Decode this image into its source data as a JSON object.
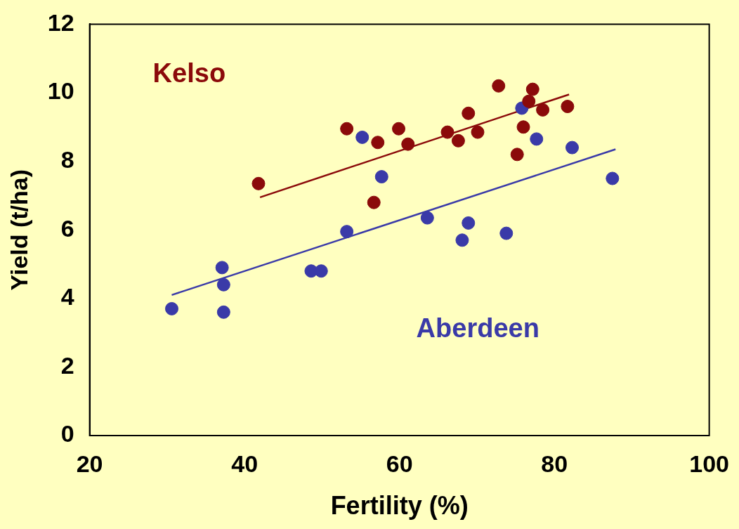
{
  "chart_data": {
    "type": "scatter",
    "xlabel": "Fertility (%)",
    "ylabel": "Yield (t/ha)",
    "xlim": [
      20,
      100
    ],
    "xticks": [
      20,
      40,
      60,
      80,
      100
    ],
    "ylim": [
      0,
      12
    ],
    "yticks": [
      0,
      2,
      4,
      6,
      8,
      10,
      12
    ],
    "grid": false,
    "legend": false,
    "marker": "circle",
    "series": [
      {
        "name": "Kelso",
        "color": "#8b0a0a",
        "x": [
          41.8,
          53.2,
          57.2,
          59.9,
          61.1,
          56.7,
          66.2,
          67.6,
          68.9,
          70.1,
          72.8,
          75.2,
          76.0,
          76.7,
          77.2,
          78.5,
          81.7
        ],
        "values": [
          7.35,
          8.95,
          8.55,
          8.95,
          8.5,
          6.8,
          8.85,
          8.6,
          9.4,
          8.85,
          10.2,
          8.2,
          9.0,
          9.75,
          10.1,
          9.5,
          9.6
        ]
      },
      {
        "name": "Aberdeen",
        "color": "#3a3aa8",
        "x": [
          30.6,
          37.1,
          37.3,
          37.3,
          48.6,
          49.9,
          53.2,
          55.2,
          57.7,
          63.6,
          68.1,
          68.9,
          73.8,
          75.8,
          77.7,
          82.3,
          87.5
        ],
        "values": [
          3.7,
          4.9,
          4.4,
          3.6,
          4.8,
          4.8,
          5.95,
          8.7,
          7.55,
          6.35,
          5.7,
          6.2,
          5.9,
          9.55,
          8.65,
          8.4,
          7.5
        ]
      },
      {
        "type": "line",
        "marker": "none",
        "color": "#8b0a0a",
        "x": [
          42.0,
          81.9
        ],
        "values": [
          6.95,
          9.95
        ]
      },
      {
        "type": "line",
        "marker": "none",
        "color": "#3a3aa8",
        "x": [
          30.6,
          87.9
        ],
        "values": [
          4.1,
          8.35
        ]
      }
    ]
  }
}
